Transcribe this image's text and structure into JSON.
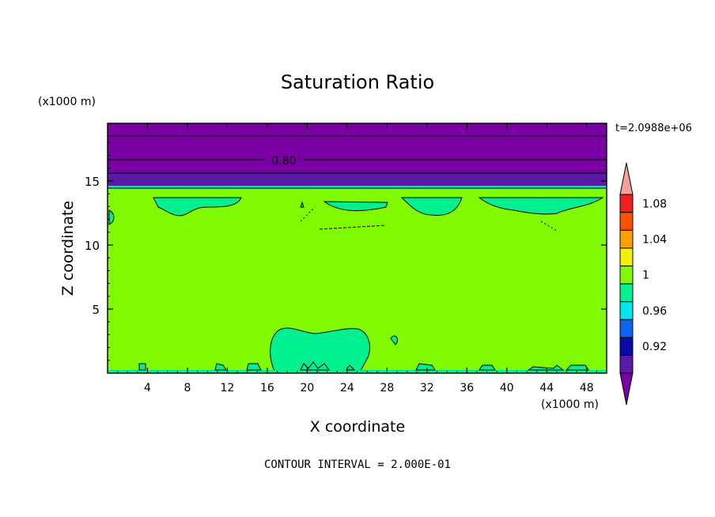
{
  "chart_data": {
    "type": "heatmap",
    "title": "Saturation Ratio",
    "xlabel": "X coordinate",
    "ylabel": "Z coordinate",
    "x_unit_label": "(x1000 m)",
    "y_unit_label": "(x1000 m)",
    "time_label": "t=2.0988e+06",
    "footer": "CONTOUR INTERVAL = 2.000E-01",
    "contour_label": "0.80",
    "xlim": [
      0,
      50
    ],
    "ylim": [
      0,
      19.5
    ],
    "x_ticks": [
      4,
      8,
      12,
      16,
      20,
      24,
      28,
      32,
      36,
      40,
      44,
      48
    ],
    "x_tick_labels": [
      "4",
      "8",
      "12",
      "16",
      "20",
      "24",
      "28",
      "32",
      "36",
      "40",
      "44",
      "48"
    ],
    "y_ticks": [
      5,
      10,
      15
    ],
    "y_tick_labels": [
      "5",
      "10",
      "15"
    ],
    "colorbar": {
      "colors": [
        "#7a00a6",
        "#5a1aa8",
        "#0a0aa8",
        "#0a64f0",
        "#00e4f0",
        "#00f090",
        "#80fa00",
        "#f0f000",
        "#ffa000",
        "#ff5000",
        "#f01e1e",
        "#f5a0a0"
      ],
      "tick_labels": [
        "0.92",
        "0.96",
        "1",
        "1.04",
        "1.08"
      ]
    },
    "regions": [
      {
        "name": "upper stratified layer",
        "value": 0.8,
        "color": "#7a00a6",
        "z_range": [
          15.8,
          19.5
        ]
      },
      {
        "name": "dark transition band",
        "value": 0.9,
        "color": "#5a1aa8",
        "z_range": [
          14.8,
          16.0
        ]
      },
      {
        "name": "main domain",
        "value": 1.0,
        "color": "#80fa00",
        "z_range": [
          0,
          14.8
        ]
      },
      {
        "name": "low-level moist patch",
        "value": 0.98,
        "color": "#00f090",
        "x_range": [
          16.5,
          26.5
        ],
        "z_range": [
          0,
          3.6
        ]
      }
    ],
    "contour_levels_z": [
      15.9,
      17.0,
      18.6
    ]
  },
  "colors": {
    "green": "#80fa00",
    "seafoam": "#00f090",
    "purple": "#7a00a6",
    "darkpurple": "#5a1aa8"
  }
}
